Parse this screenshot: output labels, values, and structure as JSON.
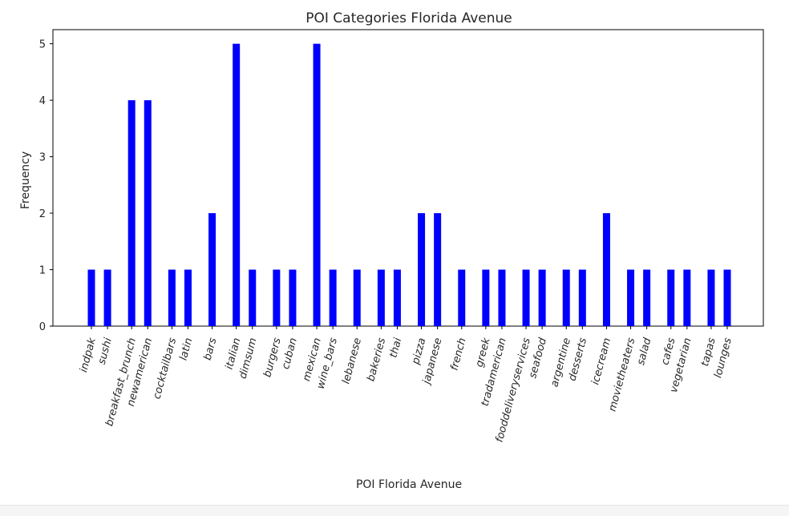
{
  "chart_data": {
    "type": "bar",
    "title": "POI Categories Florida Avenue",
    "xlabel": "POI Florida Avenue",
    "ylabel": "Frequency",
    "ylim": [
      0,
      5.25
    ],
    "yticks": [
      0,
      1,
      2,
      3,
      4,
      5
    ],
    "bar_color": "#0000ff",
    "categories": [
      {
        "label": "indpak",
        "x": 0,
        "value": 1
      },
      {
        "label": "sushi",
        "x": 1,
        "value": 1
      },
      {
        "label": "breakfast_brunch",
        "x": 2.5,
        "value": 4
      },
      {
        "label": "newamerican",
        "x": 3.5,
        "value": 4
      },
      {
        "label": "cocktailbars",
        "x": 5,
        "value": 1
      },
      {
        "label": "latin",
        "x": 6,
        "value": 1
      },
      {
        "label": "bars",
        "x": 7.5,
        "value": 2
      },
      {
        "label": "italian",
        "x": 9,
        "value": 5
      },
      {
        "label": "dimsum",
        "x": 10,
        "value": 1
      },
      {
        "label": "burgers",
        "x": 11.5,
        "value": 1
      },
      {
        "label": "cuban",
        "x": 12.5,
        "value": 1
      },
      {
        "label": "mexican",
        "x": 14,
        "value": 5
      },
      {
        "label": "wine_bars",
        "x": 15,
        "value": 1
      },
      {
        "label": "lebanese",
        "x": 16.5,
        "value": 1
      },
      {
        "label": "bakeries",
        "x": 18,
        "value": 1
      },
      {
        "label": "thai",
        "x": 19,
        "value": 1
      },
      {
        "label": "pizza",
        "x": 20.5,
        "value": 2
      },
      {
        "label": "japanese",
        "x": 21.5,
        "value": 2
      },
      {
        "label": "french",
        "x": 23,
        "value": 1
      },
      {
        "label": "greek",
        "x": 24.5,
        "value": 1
      },
      {
        "label": "tradamerican",
        "x": 25.5,
        "value": 1
      },
      {
        "label": "fooddeliveryservices",
        "x": 27,
        "value": 1
      },
      {
        "label": "seafood",
        "x": 28,
        "value": 1
      },
      {
        "label": "argentine",
        "x": 29.5,
        "value": 1
      },
      {
        "label": "desserts",
        "x": 30.5,
        "value": 1
      },
      {
        "label": "icecream",
        "x": 32,
        "value": 2
      },
      {
        "label": "movietheaters",
        "x": 33.5,
        "value": 1
      },
      {
        "label": "salad",
        "x": 34.5,
        "value": 1
      },
      {
        "label": "cafes",
        "x": 36,
        "value": 1
      },
      {
        "label": "vegetarian",
        "x": 37,
        "value": 1
      },
      {
        "label": "tapas",
        "x": 38.5,
        "value": 1
      },
      {
        "label": "lounges",
        "x": 39.5,
        "value": 1
      }
    ]
  }
}
